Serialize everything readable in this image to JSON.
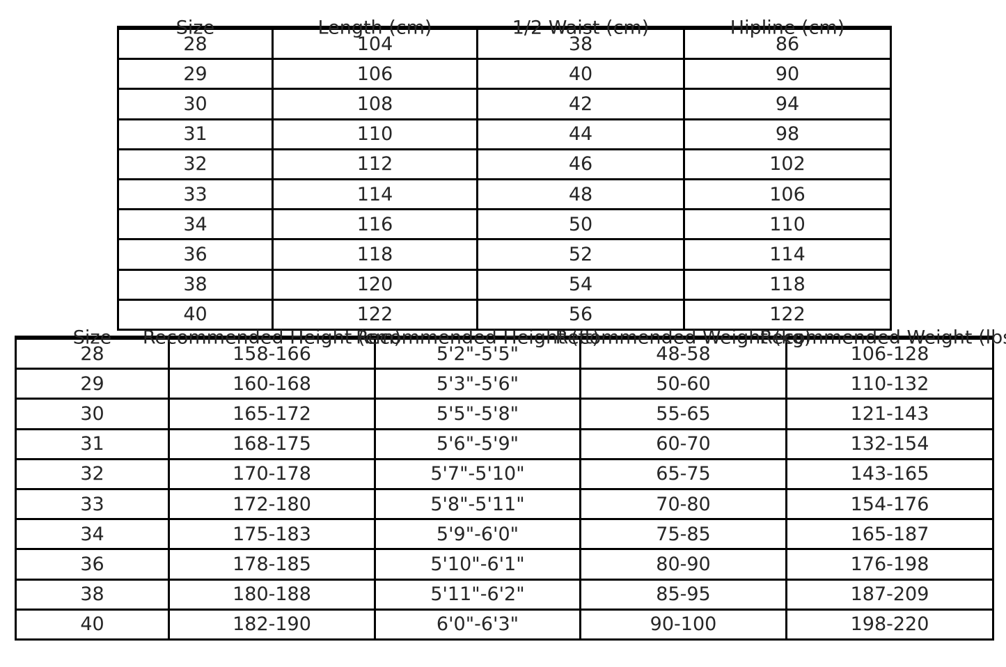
{
  "page": {
    "background": "#ffffff",
    "text_color": "#262626",
    "border_color": "#000000"
  },
  "garment_table": {
    "headers": [
      "Size",
      "Length (cm)",
      "1/2 Waist (cm)",
      "Hipline (cm)"
    ],
    "rows": [
      [
        "28",
        "104",
        "38",
        "86"
      ],
      [
        "29",
        "106",
        "40",
        "90"
      ],
      [
        "30",
        "108",
        "42",
        "94"
      ],
      [
        "31",
        "110",
        "44",
        "98"
      ],
      [
        "32",
        "112",
        "46",
        "102"
      ],
      [
        "33",
        "114",
        "48",
        "106"
      ],
      [
        "34",
        "116",
        "50",
        "110"
      ],
      [
        "36",
        "118",
        "52",
        "114"
      ],
      [
        "38",
        "120",
        "54",
        "118"
      ],
      [
        "40",
        "122",
        "56",
        "122"
      ]
    ]
  },
  "recommendation_table": {
    "headers": [
      "Size",
      "Recommended Height (cm)",
      "Recommended Height (ft)",
      "Recommended Weight (kg)",
      "Recommended Weight (lbs)"
    ],
    "rows": [
      [
        "28",
        "158-166",
        "5'2\"-5'5\"",
        "48-58",
        "106-128"
      ],
      [
        "29",
        "160-168",
        "5'3\"-5'6\"",
        "50-60",
        "110-132"
      ],
      [
        "30",
        "165-172",
        "5'5\"-5'8\"",
        "55-65",
        "121-143"
      ],
      [
        "31",
        "168-175",
        "5'6\"-5'9\"",
        "60-70",
        "132-154"
      ],
      [
        "32",
        "170-178",
        "5'7\"-5'10\"",
        "65-75",
        "143-165"
      ],
      [
        "33",
        "172-180",
        "5'8\"-5'11\"",
        "70-80",
        "154-176"
      ],
      [
        "34",
        "175-183",
        "5'9\"-6'0\"",
        "75-85",
        "165-187"
      ],
      [
        "36",
        "178-185",
        "5'10\"-6'1\"",
        "80-90",
        "176-198"
      ],
      [
        "38",
        "180-188",
        "5'11\"-6'2\"",
        "85-95",
        "187-209"
      ],
      [
        "40",
        "182-190",
        "6'0\"-6'3\"",
        "90-100",
        "198-220"
      ]
    ]
  }
}
